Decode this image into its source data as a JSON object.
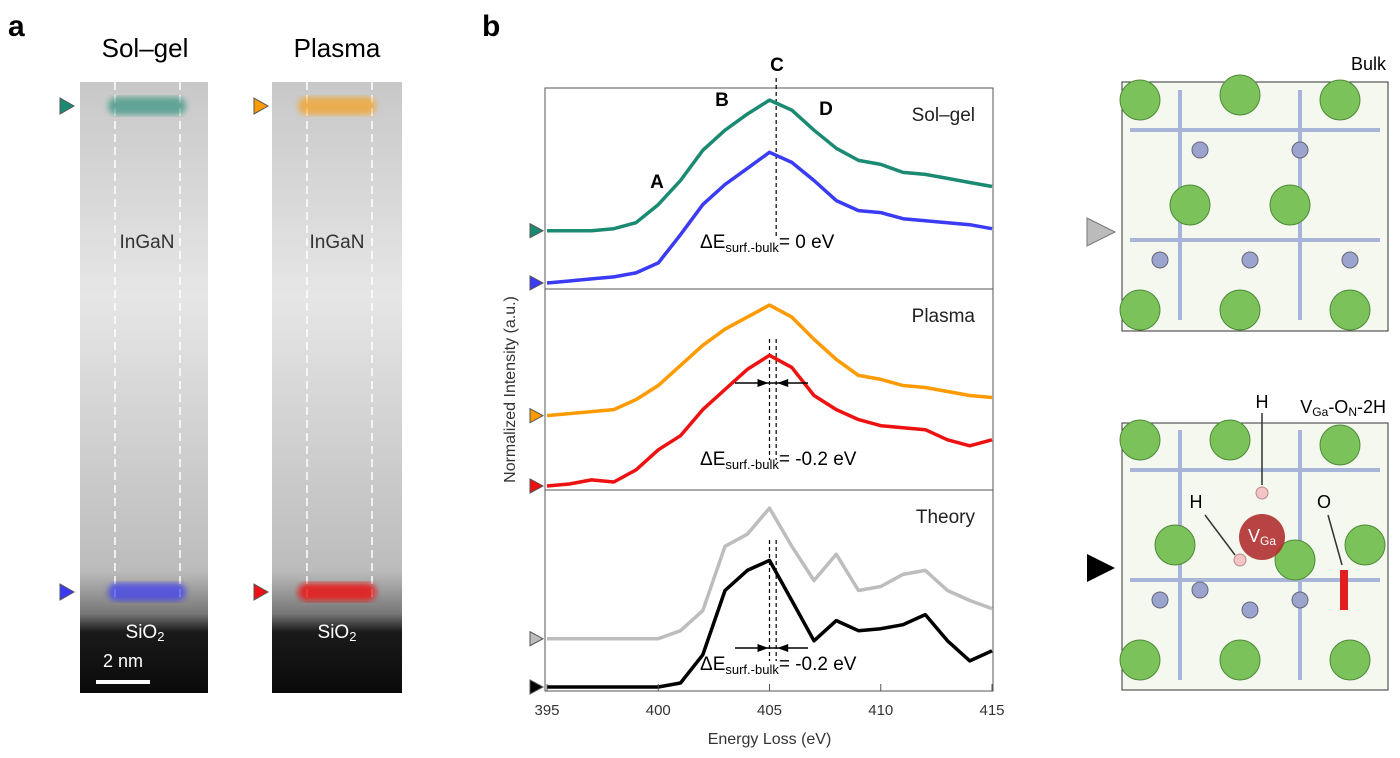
{
  "figure": {
    "panel_a": {
      "label": "a",
      "columns": [
        {
          "title": "Sol–gel",
          "layer": "InGaN",
          "substrate": {
            "text": "SiO",
            "sub": "2"
          }
        },
        {
          "title": "Plasma",
          "layer": "InGaN",
          "substrate": {
            "text": "SiO",
            "sub": "2"
          }
        }
      ],
      "scale_bar": "2 nm"
    },
    "panel_b": {
      "label": "b"
    },
    "panel_c": {
      "bulk": "Bulk",
      "defect": [
        {
          "text": "V"
        },
        {
          "sub": "Ga"
        },
        {
          "text": "-O"
        },
        {
          "sub": "N"
        },
        {
          "text": "-2H"
        }
      ],
      "h_top": "H",
      "h_left": "H",
      "o": "O",
      "vacancy": {
        "text": "V",
        "sub": "Ga"
      }
    }
  },
  "chart_data": [
    {
      "type": "line",
      "title": "Sol–gel",
      "x": [
        395,
        396,
        397,
        398,
        399,
        400,
        401,
        402,
        403,
        404,
        405,
        406,
        407,
        408,
        409,
        410,
        411,
        412,
        413,
        414,
        415
      ],
      "xlim": [
        395,
        415
      ],
      "ylim": [
        0,
        1
      ],
      "peak_labels": [
        "A",
        "B",
        "C",
        "D"
      ],
      "vlines": [
        405.3
      ],
      "annotation": {
        "prefix": "ΔE",
        "sub": "surf.-bulk",
        "suffix": "= 0 eV"
      },
      "series": [
        {
          "color": "#1b8a72",
          "values": [
            0.29,
            0.29,
            0.29,
            0.3,
            0.33,
            0.42,
            0.54,
            0.69,
            0.79,
            0.87,
            0.94,
            0.89,
            0.79,
            0.7,
            0.64,
            0.62,
            0.58,
            0.57,
            0.55,
            0.53,
            0.51
          ]
        },
        {
          "color": "#3b3bf5",
          "values": [
            0.03,
            0.04,
            0.05,
            0.06,
            0.08,
            0.13,
            0.27,
            0.42,
            0.52,
            0.6,
            0.68,
            0.63,
            0.54,
            0.44,
            0.39,
            0.38,
            0.35,
            0.34,
            0.33,
            0.32,
            0.3
          ]
        }
      ]
    },
    {
      "type": "line",
      "title": "Plasma",
      "x": [
        395,
        396,
        397,
        398,
        399,
        400,
        401,
        402,
        403,
        404,
        405,
        406,
        407,
        408,
        409,
        410,
        411,
        412,
        413,
        414,
        415
      ],
      "xlim": [
        395,
        415
      ],
      "ylim": [
        0,
        1
      ],
      "ylabel": "Normalized Intensity (a.u.)",
      "vlines": [
        405,
        405.3
      ],
      "annotation": {
        "prefix": "ΔE",
        "sub": "surf.-bulk",
        "suffix": "= -0.2 eV"
      },
      "series": [
        {
          "color": "#ff9a00",
          "values": [
            0.37,
            0.38,
            0.39,
            0.4,
            0.45,
            0.52,
            0.62,
            0.72,
            0.8,
            0.86,
            0.92,
            0.86,
            0.75,
            0.65,
            0.57,
            0.55,
            0.52,
            0.51,
            0.49,
            0.47,
            0.46
          ]
        },
        {
          "color": "#ee1111",
          "values": [
            0.02,
            0.03,
            0.05,
            0.04,
            0.1,
            0.2,
            0.27,
            0.4,
            0.5,
            0.6,
            0.67,
            0.61,
            0.47,
            0.4,
            0.35,
            0.32,
            0.31,
            0.3,
            0.25,
            0.22,
            0.25
          ]
        }
      ]
    },
    {
      "type": "line",
      "title": "Theory",
      "x": [
        395,
        396,
        397,
        398,
        399,
        400,
        401,
        402,
        403,
        404,
        405,
        406,
        407,
        408,
        409,
        410,
        411,
        412,
        413,
        414,
        415
      ],
      "xlim": [
        395,
        415
      ],
      "ylim": [
        0,
        1
      ],
      "xticks": [
        395,
        400,
        405,
        410,
        415
      ],
      "xlabel": "Energy Loss (eV)",
      "vlines": [
        405,
        405.3
      ],
      "annotation": {
        "prefix": "ΔE",
        "sub": "surf.-bulk",
        "suffix": "= -0.2 eV"
      },
      "series": [
        {
          "color": "#bdbdbd",
          "values": [
            0.26,
            0.26,
            0.26,
            0.26,
            0.26,
            0.26,
            0.3,
            0.4,
            0.72,
            0.78,
            0.91,
            0.72,
            0.55,
            0.68,
            0.5,
            0.52,
            0.58,
            0.6,
            0.5,
            0.45,
            0.41
          ]
        },
        {
          "color": "#000000",
          "values": [
            0.02,
            0.02,
            0.02,
            0.02,
            0.02,
            0.02,
            0.04,
            0.18,
            0.5,
            0.6,
            0.65,
            0.45,
            0.25,
            0.35,
            0.3,
            0.31,
            0.33,
            0.38,
            0.25,
            0.15,
            0.2
          ]
        }
      ]
    }
  ]
}
